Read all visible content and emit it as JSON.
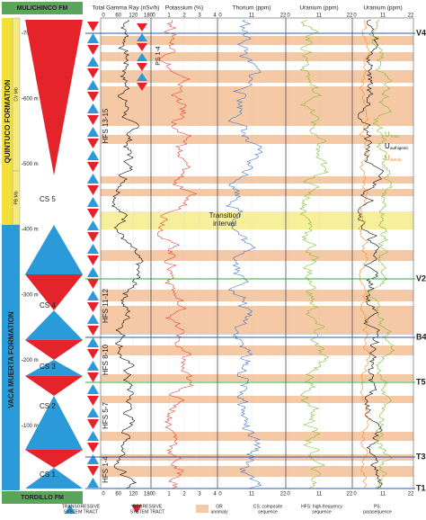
{
  "header": {
    "top_formation": "MULICHINCO FM",
    "bottom_formation": "TORDILLO FM"
  },
  "tracks": [
    {
      "title": "Total Gamma Ray (nSv/h)",
      "ticks": [
        0,
        60,
        120,
        180
      ]
    },
    {
      "title": "Potassium (%)",
      "ticks": [
        0,
        1,
        2,
        3,
        4
      ]
    },
    {
      "title": "Thorium (ppm)",
      "ticks": [
        0,
        11,
        22
      ]
    },
    {
      "title": "Uranium (ppm)",
      "ticks": [
        0,
        11,
        22
      ]
    },
    {
      "title": "Uranium (ppm)",
      "ticks": [
        0,
        11,
        22
      ]
    }
  ],
  "formations": {
    "quintuco": "QUINTUCO FORMATION",
    "vaca_muerta": "VACA MUERTA FORMATION",
    "cv": "CV Mb",
    "pb": "PB Mb"
  },
  "depths": [
    "700 m",
    "600 m",
    "500 m",
    "400 m",
    "300 m",
    "200 m",
    "100 m"
  ],
  "composite_sequences": [
    "CS 5",
    "CS 4",
    "CS 3",
    "CS 2",
    "CS 1"
  ],
  "hfs": [
    "HFS 13-15",
    "HFS 11-12",
    "HFS 8-10",
    "HFS 5-7",
    "HFS 1-4"
  ],
  "parasequence": "PS 1-4",
  "surfaces": [
    "V4",
    "V2",
    "B4",
    "T5",
    "T3",
    "T1"
  ],
  "transition": [
    "Transition",
    "interval"
  ],
  "uranium_legend": {
    "total": "U",
    "total_sub": "Total",
    "auth": "U",
    "auth_sub": "authigenic",
    "det": "U",
    "det_sub": "detritic"
  },
  "legend": {
    "transgressive": [
      "TRANSGRESSIVE",
      "SYSTEM TRACT"
    ],
    "regressive": [
      "REGRESSIVE",
      "SYSTEM TRACT"
    ],
    "gr": [
      "GR",
      "anomaly"
    ],
    "cs": [
      "CS: composite",
      "sequence"
    ],
    "hfs": [
      "HFS: high-frequency",
      "sequence"
    ],
    "ps": [
      "PS:",
      "parasequence"
    ]
  }
}
